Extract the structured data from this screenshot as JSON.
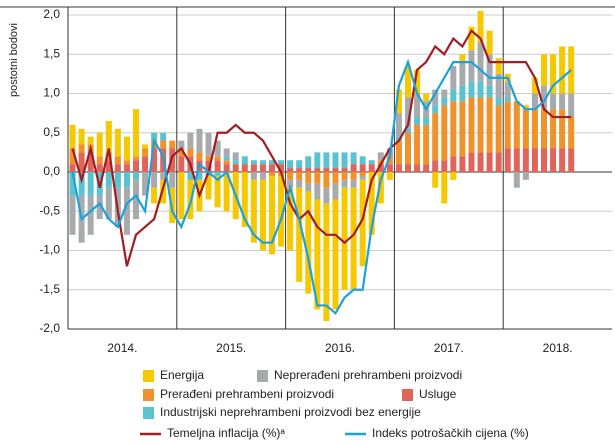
{
  "chart_data": {
    "type": "bar",
    "y_axis_label": "postotni bodovi",
    "year_labels": [
      "2014.",
      "2015.",
      "2016.",
      "2017.",
      "2018."
    ],
    "ylim": [
      -2,
      2
    ],
    "yticks": [
      {
        "value": -2,
        "label": "-2,0"
      },
      {
        "value": -1.5,
        "label": "-1,5"
      },
      {
        "value": -1,
        "label": "-1,0"
      },
      {
        "value": -0.5,
        "label": "-0,5"
      },
      {
        "value": 0,
        "label": "0,0"
      },
      {
        "value": 0.5,
        "label": "0,5"
      },
      {
        "value": 1,
        "label": "1,0"
      },
      {
        "value": 1.5,
        "label": "1,5"
      },
      {
        "value": 2,
        "label": "2,0"
      }
    ],
    "grid": true,
    "series": [
      {
        "name": "Energija",
        "color": "#f5c800",
        "values": [
          0.3,
          0.2,
          0.1,
          0.3,
          0.4,
          0.35,
          0.3,
          0.6,
          0.05,
          -0.2,
          -0.3,
          -0.45,
          -0.6,
          -0.5,
          -0.4,
          -0.3,
          -0.4,
          -0.5,
          -0.6,
          -0.7,
          -0.8,
          -0.9,
          -1.0,
          -0.9,
          -0.8,
          -1.2,
          -1.3,
          -1.4,
          -1.5,
          -1.4,
          -1.3,
          -1.3,
          -1.1,
          -0.8,
          -0.4,
          -0.1,
          0.3,
          0.4,
          0.3,
          0.1,
          -0.2,
          -0.4,
          -0.1,
          0.1,
          0.3,
          0.4,
          0.3,
          0.2,
          0.1,
          0.0,
          0.05,
          0.2,
          0.4,
          0.5,
          0.6,
          0.6
        ]
      },
      {
        "name": "Neprerađeni prehrambeni proizvodi",
        "color": "#a7abad",
        "values": [
          -0.5,
          -0.6,
          -0.5,
          -0.3,
          -0.4,
          -0.5,
          -0.6,
          -0.5,
          -0.3,
          -0.2,
          -0.1,
          -0.2,
          0.1,
          0.2,
          0.3,
          0.3,
          0.2,
          0.1,
          0.1,
          0.0,
          -0.1,
          -0.1,
          0.0,
          0.0,
          -0.1,
          -0.1,
          -0.1,
          -0.2,
          -0.2,
          -0.2,
          -0.1,
          -0.1,
          -0.05,
          0.0,
          0.1,
          0.1,
          0.3,
          0.4,
          0.3,
          0.2,
          0.2,
          0.1,
          0.3,
          0.3,
          0.4,
          0.5,
          0.4,
          0.3,
          0.2,
          -0.2,
          -0.1,
          0.2,
          0.3,
          0.2,
          0.2,
          0.3
        ]
      },
      {
        "name": "Prerađeni prehrambeni proizvodi",
        "color": "#f0922b",
        "values": [
          0.2,
          0.1,
          0.1,
          0.1,
          0.1,
          0.1,
          0.05,
          0.05,
          0.1,
          0.1,
          0.1,
          0.1,
          0.1,
          0.1,
          0.1,
          0.05,
          0.05,
          0.05,
          0.0,
          0.0,
          0.0,
          0.0,
          -0.05,
          -0.05,
          -0.1,
          -0.1,
          -0.15,
          -0.15,
          -0.2,
          -0.15,
          -0.1,
          -0.1,
          -0.05,
          0.0,
          0.05,
          0.1,
          0.3,
          0.4,
          0.5,
          0.5,
          0.6,
          0.7,
          0.7,
          0.7,
          0.7,
          0.7,
          0.7,
          0.6,
          0.6,
          0.6,
          0.5,
          0.5,
          0.5,
          0.5,
          0.5,
          0.4
        ]
      },
      {
        "name": "Usluge",
        "color": "#e0645a",
        "values": [
          0.1,
          0.25,
          0.25,
          0.1,
          0.15,
          0.1,
          0.1,
          0.15,
          0.2,
          0.3,
          0.3,
          0.3,
          0.2,
          0.2,
          0.15,
          0.15,
          0.15,
          0.1,
          0.1,
          0.1,
          0.1,
          0.1,
          0.1,
          0.1,
          0.05,
          0.05,
          0.05,
          0.05,
          0.05,
          0.05,
          0.05,
          0.1,
          0.1,
          0.1,
          0.1,
          0.1,
          0.1,
          0.1,
          0.1,
          0.1,
          0.15,
          0.15,
          0.2,
          0.2,
          0.25,
          0.25,
          0.25,
          0.25,
          0.3,
          0.3,
          0.3,
          0.3,
          0.3,
          0.3,
          0.3,
          0.3
        ]
      },
      {
        "name": "Industrijski neprehrambeni proizvodi bez energije",
        "color": "#5bc3d0",
        "values": [
          -0.3,
          -0.3,
          -0.3,
          -0.3,
          -0.2,
          -0.2,
          -0.2,
          -0.1,
          0.0,
          0.1,
          0.1,
          0.0,
          0.0,
          -0.1,
          -0.1,
          -0.05,
          -0.05,
          0.05,
          0.05,
          0.1,
          0.05,
          0.05,
          0.05,
          0.05,
          0.1,
          0.1,
          0.15,
          0.2,
          0.2,
          0.2,
          0.2,
          0.15,
          0.1,
          0.05,
          0.0,
          0.0,
          0.05,
          0.05,
          0.1,
          0.1,
          0.1,
          0.1,
          0.15,
          0.2,
          0.2,
          0.2,
          0.15,
          0.1,
          0.05,
          0.0,
          0.0,
          0.0,
          0.0,
          0.0,
          0.0,
          0.0
        ]
      }
    ],
    "lines": [
      {
        "name": "Temeljna inflacija (%)ᵃ",
        "color": "#a01e23",
        "values": [
          0.3,
          -0.1,
          0.3,
          -0.2,
          0.3,
          -0.5,
          -1.2,
          -0.8,
          -0.7,
          -0.6,
          -0.2,
          0.2,
          0.3,
          0.1,
          -0.3,
          0.0,
          0.5,
          0.5,
          0.6,
          0.5,
          0.5,
          0.4,
          0.2,
          0.0,
          -0.4,
          -0.6,
          -0.5,
          -0.7,
          -0.8,
          -0.8,
          -0.9,
          -0.8,
          -0.6,
          -0.1,
          0.1,
          0.3,
          0.4,
          0.6,
          1.3,
          1.4,
          1.6,
          1.5,
          1.7,
          1.6,
          1.8,
          1.7,
          1.4,
          1.4,
          1.4,
          1.4,
          1.4,
          1.2,
          0.8,
          0.7,
          0.7,
          0.7
        ]
      },
      {
        "name": "Indeks potrošačkih cijena (%)",
        "color": "#1ba1dc",
        "values": [
          0.0,
          -0.6,
          -0.5,
          -0.4,
          -0.6,
          -0.7,
          -0.4,
          -0.3,
          -0.5,
          0.4,
          0.2,
          -0.5,
          -0.7,
          -0.4,
          0.1,
          0.0,
          -0.1,
          0.0,
          -0.3,
          -0.6,
          -0.8,
          -0.9,
          -0.9,
          -0.6,
          -0.2,
          -0.6,
          -1.1,
          -1.7,
          -1.7,
          -1.8,
          -1.6,
          -1.5,
          -1.5,
          -0.7,
          -0.1,
          0.2,
          1.1,
          1.4,
          1.0,
          0.8,
          1.0,
          1.2,
          1.4,
          1.4,
          1.4,
          1.3,
          1.2,
          1.2,
          1.2,
          0.9,
          0.8,
          0.8,
          0.9,
          1.1,
          1.2,
          1.3
        ]
      }
    ]
  }
}
